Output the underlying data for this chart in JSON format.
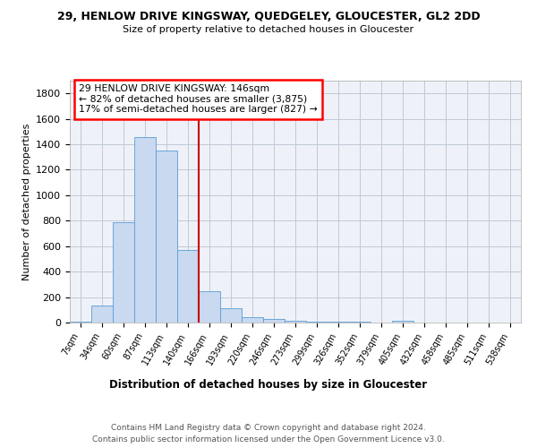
{
  "title": "29, HENLOW DRIVE KINGSWAY, QUEDGELEY, GLOUCESTER, GL2 2DD",
  "subtitle": "Size of property relative to detached houses in Gloucester",
  "xlabel": "Distribution of detached houses by size in Gloucester",
  "ylabel": "Number of detached properties",
  "footer_line1": "Contains HM Land Registry data © Crown copyright and database right 2024.",
  "footer_line2": "Contains public sector information licensed under the Open Government Licence v3.0.",
  "annotation_line1": "29 HENLOW DRIVE KINGSWAY: 146sqm",
  "annotation_line2": "← 82% of detached houses are smaller (3,875)",
  "annotation_line3": "17% of semi-detached houses are larger (827) →",
  "bin_labels": [
    "7sqm",
    "34sqm",
    "60sqm",
    "87sqm",
    "113sqm",
    "140sqm",
    "166sqm",
    "193sqm",
    "220sqm",
    "246sqm",
    "273sqm",
    "299sqm",
    "326sqm",
    "352sqm",
    "379sqm",
    "405sqm",
    "432sqm",
    "458sqm",
    "485sqm",
    "511sqm",
    "538sqm"
  ],
  "bar_heights": [
    10,
    135,
    785,
    1460,
    1350,
    570,
    245,
    110,
    40,
    25,
    15,
    10,
    8,
    5,
    2,
    15,
    2,
    1,
    1,
    1,
    0
  ],
  "bar_color": "#c8d9f0",
  "bar_edge_color": "#5b9bd5",
  "red_line_color": "#cc0000",
  "background_color": "#ffffff",
  "plot_bg_color": "#eef2f8",
  "grid_color": "#c0c8d8",
  "ylim": [
    0,
    1900
  ],
  "yticks": [
    0,
    200,
    400,
    600,
    800,
    1000,
    1200,
    1400,
    1600,
    1800
  ],
  "red_line_x": 5.5
}
